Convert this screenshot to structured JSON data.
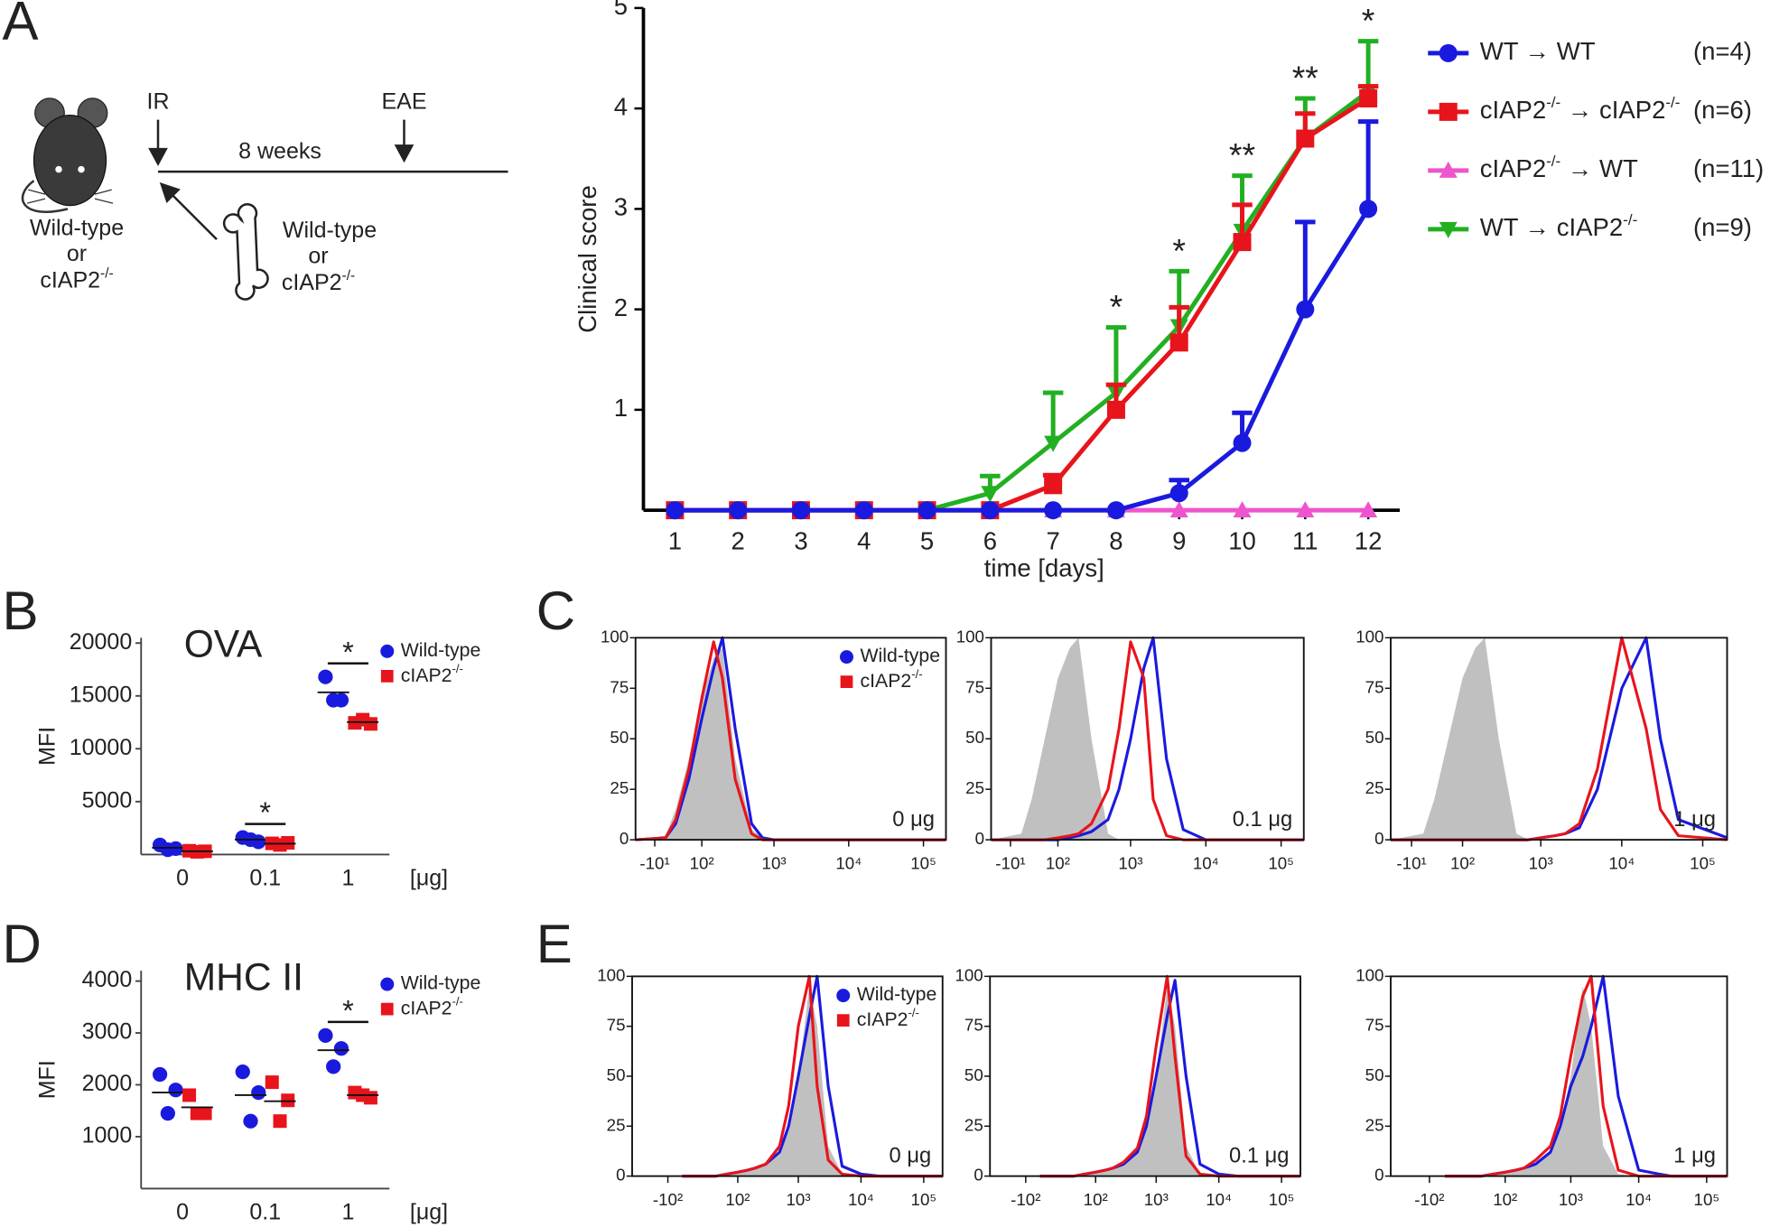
{
  "panel_labels": [
    "A",
    "B",
    "C",
    "D",
    "E"
  ],
  "schematic": {
    "irradiation": "IR",
    "immunization": "EAE",
    "interval": "8 weeks",
    "recipient": [
      "Wild-type",
      "or",
      "cIAP2-/-"
    ],
    "donor": [
      "Wild-type",
      "or",
      "cIAP2-/-"
    ]
  },
  "chart_data": [
    {
      "type": "line",
      "xlabel": "time [days]",
      "ylabel": "Clinical score",
      "x": [
        1,
        2,
        3,
        4,
        5,
        6,
        7,
        8,
        9,
        10,
        11,
        12
      ],
      "xlim": [
        0.5,
        12.5
      ],
      "xticks": [
        1,
        2,
        3,
        4,
        5,
        6,
        7,
        8,
        9,
        10,
        11,
        12
      ],
      "ylim": [
        0,
        5
      ],
      "yticks": [
        1,
        2,
        3,
        4,
        5
      ],
      "series": [
        {
          "name": "WT → WT",
          "n": "(n=4)",
          "color": "#1a1adf",
          "marker": "circle",
          "values": [
            0,
            0,
            0,
            0,
            0,
            0,
            0,
            0,
            0.17,
            0.67,
            2,
            3
          ],
          "errors": [
            null,
            null,
            null,
            null,
            null,
            null,
            null,
            null,
            0.13,
            0.3,
            0.87,
            0.87
          ]
        },
        {
          "name": "cIAP2-/- → cIAP2-/-",
          "n": "(n=6)",
          "color": "#e8141c",
          "marker": "square",
          "values": [
            0,
            0,
            0,
            0,
            0,
            0,
            0.25,
            1,
            1.67,
            2.67,
            3.7,
            4.1
          ],
          "errors": [
            null,
            null,
            null,
            null,
            null,
            null,
            0.1,
            0.25,
            0.35,
            0.37,
            0.25,
            0.12
          ]
        },
        {
          "name": "cIAP2-/- → WT",
          "n": "(n=11)",
          "color": "#ee55cc",
          "marker": "triangle-up",
          "values": [
            0,
            0,
            0,
            0,
            0,
            0,
            0,
            0,
            0,
            0,
            0,
            0
          ]
        },
        {
          "name": "WT → cIAP2-/-",
          "n": "(n=9)",
          "color": "#22b022",
          "marker": "triangle-down",
          "values": [
            0,
            0,
            0,
            0,
            0,
            0.17,
            0.67,
            1.17,
            1.83,
            2.78,
            3.7,
            4.17
          ],
          "errors": [
            null,
            null,
            null,
            null,
            null,
            0.17,
            0.5,
            0.65,
            0.55,
            0.55,
            0.4,
            0.5
          ]
        }
      ],
      "annotations": [
        {
          "x": 8,
          "text": "*"
        },
        {
          "x": 9,
          "text": "*"
        },
        {
          "x": 10,
          "text": "**"
        },
        {
          "x": 11,
          "text": "**"
        },
        {
          "x": 12,
          "text": "*"
        }
      ]
    },
    {
      "type": "dot",
      "title": "OVA",
      "ylabel": "MFI",
      "xlabel": "[μg]",
      "categories": [
        "0",
        "0.1",
        "1"
      ],
      "ylim": [
        0,
        20500
      ],
      "yticks": [
        5000,
        10000,
        15000,
        20000
      ],
      "series": [
        {
          "name": "Wild-type",
          "color": "#1a1adf",
          "marker": "circle",
          "values": [
            [
              900,
              550,
              450
            ],
            [
              1600,
              1200,
              1400
            ],
            [
              16800,
              14600,
              14600
            ]
          ]
        },
        {
          "name": "cIAP2-/-",
          "color": "#e8141c",
          "marker": "square",
          "values": [
            [
              350,
              300,
              250
            ],
            [
              1050,
              1100,
              900
            ],
            [
              12450,
              12350,
              12750
            ]
          ]
        }
      ],
      "significance": [
        null,
        "*",
        "*"
      ]
    },
    {
      "type": "area",
      "xscale": "biexponential",
      "x": [
        -50,
        10,
        30,
        60,
        100,
        150,
        200,
        300,
        500,
        700,
        1000,
        1500,
        2000,
        3000,
        5000,
        10000,
        20000,
        30000,
        50000,
        200000
      ],
      "xlim": [
        -50,
        200000
      ],
      "xticks": [
        {
          "value": -10,
          "label": "-10¹"
        },
        {
          "value": 100,
          "label": "10²"
        },
        {
          "value": 1000,
          "label": "10³"
        },
        {
          "value": 10000,
          "label": "10⁴"
        },
        {
          "value": 100000,
          "label": "10⁵"
        }
      ],
      "ylim": [
        0,
        100
      ],
      "yticks": [
        0,
        25,
        50,
        75,
        100
      ],
      "legend": true,
      "annotation": "0 μg",
      "series": [
        {
          "color": "#c0c0c0",
          "filled": true,
          "values": [
            0,
            2,
            15,
            40,
            70,
            90,
            95,
            40,
            5,
            1,
            0,
            0,
            0,
            0,
            0,
            0,
            0,
            0,
            0,
            0
          ]
        },
        {
          "name": "Wild-type",
          "color": "#1a1adf",
          "marker": "circle",
          "values": [
            0,
            1,
            8,
            30,
            60,
            85,
            100,
            55,
            8,
            1,
            0,
            0,
            0,
            0,
            0,
            0,
            0,
            0,
            0,
            0
          ]
        },
        {
          "name": "cIAP2-/-",
          "color": "#e8141c",
          "marker": "square",
          "values": [
            0,
            1,
            10,
            35,
            70,
            98,
            80,
            30,
            3,
            0,
            0,
            0,
            0,
            0,
            0,
            0,
            0,
            0,
            0,
            0
          ]
        }
      ]
    },
    {
      "type": "area",
      "xscale": "biexponential",
      "x": [
        -50,
        10,
        30,
        60,
        100,
        150,
        200,
        300,
        500,
        700,
        1000,
        1500,
        2000,
        3000,
        5000,
        10000,
        20000,
        30000,
        50000,
        200000
      ],
      "xlim": [
        -50,
        200000
      ],
      "xticks": [
        {
          "value": -10,
          "label": "-10¹"
        },
        {
          "value": 100,
          "label": "10²"
        },
        {
          "value": 1000,
          "label": "10³"
        },
        {
          "value": 10000,
          "label": "10⁴"
        },
        {
          "value": 100000,
          "label": "10⁵"
        }
      ],
      "ylim": [
        0,
        100
      ],
      "yticks": [
        0,
        25,
        50,
        75,
        100
      ],
      "legend": false,
      "annotation": "0.1 μg",
      "series": [
        {
          "color": "#c0c0c0",
          "filled": true,
          "values": [
            0,
            3,
            20,
            50,
            80,
            95,
            100,
            50,
            3,
            0,
            0,
            0,
            0,
            0,
            0,
            0,
            0,
            0,
            0,
            0
          ]
        },
        {
          "color": "#1a1adf",
          "values": [
            0,
            0,
            0,
            0,
            0,
            1,
            2,
            4,
            10,
            25,
            50,
            85,
            100,
            40,
            5,
            0,
            0,
            0,
            0,
            0
          ]
        },
        {
          "color": "#e8141c",
          "values": [
            0,
            0,
            0,
            0,
            1,
            2,
            3,
            8,
            25,
            55,
            98,
            80,
            20,
            2,
            0,
            0,
            0,
            0,
            0,
            0
          ]
        }
      ]
    },
    {
      "type": "area",
      "xscale": "biexponential",
      "x": [
        -50,
        10,
        30,
        60,
        100,
        150,
        200,
        300,
        500,
        700,
        1000,
        1500,
        2000,
        3000,
        5000,
        10000,
        20000,
        30000,
        50000,
        200000
      ],
      "xlim": [
        -50,
        200000
      ],
      "xticks": [
        {
          "value": -10,
          "label": "-10¹"
        },
        {
          "value": 100,
          "label": "10²"
        },
        {
          "value": 1000,
          "label": "10³"
        },
        {
          "value": 10000,
          "label": "10⁴"
        },
        {
          "value": 100000,
          "label": "10⁵"
        }
      ],
      "ylim": [
        0,
        100
      ],
      "yticks": [
        0,
        25,
        50,
        75,
        100
      ],
      "legend": false,
      "annotation": "1 μg",
      "series": [
        {
          "color": "#c0c0c0",
          "filled": true,
          "values": [
            0,
            3,
            20,
            50,
            80,
            95,
            100,
            50,
            3,
            0,
            0,
            0,
            0,
            0,
            0,
            0,
            0,
            0,
            0,
            0
          ]
        },
        {
          "color": "#1a1adf",
          "values": [
            0,
            0,
            0,
            0,
            0,
            0,
            0,
            0,
            0,
            0,
            1,
            2,
            3,
            6,
            25,
            75,
            100,
            50,
            10,
            1
          ]
        },
        {
          "color": "#e8141c",
          "values": [
            0,
            0,
            0,
            0,
            0,
            0,
            0,
            0,
            0,
            0,
            1,
            2,
            3,
            8,
            35,
            100,
            55,
            15,
            2,
            0
          ]
        }
      ]
    },
    {
      "type": "dot",
      "title": "MHC II",
      "ylabel": "MFI",
      "xlabel": "[μg]",
      "categories": [
        "0",
        "0.1",
        "1"
      ],
      "ylim": [
        0,
        4200
      ],
      "yticks": [
        1000,
        2000,
        3000,
        4000
      ],
      "series": [
        {
          "name": "Wild-type",
          "color": "#1a1adf",
          "marker": "circle",
          "values": [
            [
              2200,
              1900,
              1450
            ],
            [
              2250,
              1850,
              1300
            ],
            [
              2950,
              2700,
              2350
            ]
          ]
        },
        {
          "name": "cIAP2-/-",
          "color": "#e8141c",
          "marker": "square",
          "values": [
            [
              1800,
              1450,
              1450
            ],
            [
              2050,
              1700,
              1300
            ],
            [
              1850,
              1750,
              1800
            ]
          ]
        }
      ],
      "significance": [
        null,
        null,
        "*"
      ]
    },
    {
      "type": "area",
      "xscale": "biexponential",
      "x": [
        -50,
        10,
        30,
        60,
        100,
        150,
        200,
        300,
        500,
        700,
        1000,
        1500,
        2000,
        3000,
        5000,
        10000,
        20000,
        30000,
        50000,
        200000
      ],
      "xlim": [
        -400,
        200000
      ],
      "xticks": [
        {
          "value": -100,
          "label": "-10²"
        },
        {
          "value": 100,
          "label": "10²"
        },
        {
          "value": 1000,
          "label": "10³"
        },
        {
          "value": 10000,
          "label": "10⁴"
        },
        {
          "value": 100000,
          "label": "10⁵"
        }
      ],
      "ylim": [
        0,
        100
      ],
      "yticks": [
        0,
        25,
        50,
        75,
        100
      ],
      "legend": true,
      "annotation": "0 μg",
      "series": [
        {
          "color": "#c0c0c0",
          "filled": true,
          "values": [
            0,
            0,
            0,
            1,
            2,
            3,
            4,
            6,
            12,
            25,
            50,
            95,
            75,
            15,
            1,
            0,
            0,
            0,
            0,
            0
          ]
        },
        {
          "name": "Wild-type",
          "color": "#1a1adf",
          "marker": "circle",
          "values": [
            0,
            0,
            0,
            1,
            2,
            3,
            4,
            6,
            12,
            25,
            50,
            80,
            100,
            45,
            5,
            1,
            0,
            0,
            0,
            0
          ]
        },
        {
          "name": "cIAP2-/-",
          "color": "#e8141c",
          "marker": "square",
          "values": [
            0,
            0,
            0,
            1,
            2,
            3,
            4,
            6,
            15,
            35,
            75,
            100,
            45,
            8,
            1,
            0,
            0,
            0,
            0,
            0
          ]
        }
      ]
    },
    {
      "type": "area",
      "xscale": "biexponential",
      "x": [
        -50,
        10,
        30,
        60,
        100,
        150,
        200,
        300,
        500,
        700,
        1000,
        1500,
        2000,
        3000,
        5000,
        10000,
        20000,
        30000,
        50000,
        200000
      ],
      "xlim": [
        -400,
        200000
      ],
      "xticks": [
        {
          "value": -100,
          "label": "-10²"
        },
        {
          "value": 100,
          "label": "10²"
        },
        {
          "value": 1000,
          "label": "10³"
        },
        {
          "value": 10000,
          "label": "10⁴"
        },
        {
          "value": 100000,
          "label": "10⁵"
        }
      ],
      "ylim": [
        0,
        100
      ],
      "yticks": [
        0,
        25,
        50,
        75,
        100
      ],
      "legend": false,
      "annotation": "0.1 μg",
      "series": [
        {
          "color": "#c0c0c0",
          "filled": true,
          "values": [
            0,
            0,
            0,
            1,
            2,
            3,
            4,
            6,
            12,
            25,
            50,
            95,
            75,
            15,
            1,
            0,
            0,
            0,
            0,
            0
          ]
        },
        {
          "color": "#1a1adf",
          "values": [
            0,
            0,
            0,
            1,
            2,
            3,
            4,
            6,
            12,
            25,
            50,
            80,
            98,
            50,
            6,
            1,
            0,
            0,
            0,
            0
          ]
        },
        {
          "color": "#e8141c",
          "values": [
            0,
            0,
            0,
            1,
            2,
            3,
            4,
            7,
            14,
            30,
            65,
            100,
            60,
            10,
            1,
            0,
            0,
            0,
            0,
            0
          ]
        }
      ]
    },
    {
      "type": "area",
      "xscale": "biexponential",
      "x": [
        -50,
        10,
        30,
        60,
        100,
        150,
        200,
        300,
        500,
        700,
        1000,
        1500,
        2000,
        3000,
        5000,
        10000,
        20000,
        30000,
        50000,
        200000
      ],
      "xlim": [
        -400,
        200000
      ],
      "xticks": [
        {
          "value": -100,
          "label": "-10²"
        },
        {
          "value": 100,
          "label": "10²"
        },
        {
          "value": 1000,
          "label": "10³"
        },
        {
          "value": 10000,
          "label": "10⁴"
        },
        {
          "value": 100000,
          "label": "10⁵"
        }
      ],
      "ylim": [
        0,
        100
      ],
      "yticks": [
        0,
        25,
        50,
        75,
        100
      ],
      "legend": false,
      "annotation": "1 μg",
      "series": [
        {
          "color": "#c0c0c0",
          "filled": true,
          "values": [
            0,
            0,
            0,
            1,
            2,
            3,
            4,
            6,
            12,
            25,
            50,
            95,
            75,
            15,
            1,
            0,
            0,
            0,
            0,
            0
          ]
        },
        {
          "color": "#1a1adf",
          "values": [
            0,
            0,
            0,
            1,
            2,
            3,
            4,
            6,
            12,
            25,
            45,
            60,
            75,
            100,
            40,
            3,
            1,
            0,
            0,
            0
          ]
        },
        {
          "color": "#e8141c",
          "values": [
            0,
            0,
            0,
            1,
            2,
            3,
            4,
            8,
            15,
            30,
            60,
            90,
            100,
            35,
            3,
            0,
            0,
            0,
            0,
            0
          ]
        }
      ]
    }
  ]
}
